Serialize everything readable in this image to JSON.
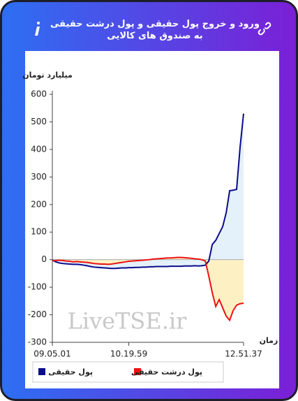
{
  "header": {
    "title": "ورود و خروج پول حقیقی و پول درشت حقیقی به صندوق های کالایی"
  },
  "chart_data": {
    "type": "line",
    "y_label": "میلیارد تومان",
    "x_label": "زمان",
    "watermark": "LiveTSE.ir",
    "categories": [
      "09.05.01",
      null,
      null,
      null,
      null,
      null,
      null,
      null,
      null,
      null,
      null,
      null,
      null,
      null,
      null,
      null,
      null,
      null,
      null,
      null,
      null,
      null,
      "10.19.59",
      null,
      null,
      null,
      null,
      null,
      null,
      null,
      null,
      null,
      null,
      null,
      null,
      null,
      null,
      null,
      null,
      null,
      null,
      null,
      null,
      null,
      null,
      null,
      null,
      null,
      null,
      null,
      null,
      null,
      null,
      null,
      null,
      "12.51.37"
    ],
    "series": [
      {
        "name": "پول حقیقی",
        "color": "#0b0b8c",
        "fill": "#e4f1fa",
        "values": [
          -2,
          -8,
          -12,
          -14,
          -15,
          -16,
          -17,
          -17,
          -18,
          -20,
          -22,
          -25,
          -27,
          -28,
          -29,
          -30,
          -31,
          -32,
          -32,
          -31,
          -30,
          -30,
          -29,
          -29,
          -28,
          -28,
          -27,
          -27,
          -26,
          -26,
          -25,
          -25,
          -25,
          -25,
          -24,
          -24,
          -24,
          -24,
          -23,
          -23,
          -23,
          -22,
          -23,
          -22,
          -20,
          -5,
          55,
          70,
          95,
          120,
          170,
          250,
          252,
          255,
          408,
          530
        ]
      },
      {
        "name": "پول درشت حقیقی",
        "color": "#ee1111",
        "fill": "#fdf1c4",
        "values": [
          -5,
          -3,
          -2,
          -3,
          -5,
          -6,
          -8,
          -7,
          -8,
          -9,
          -10,
          -12,
          -14,
          -15,
          -16,
          -16,
          -17,
          -16,
          -14,
          -12,
          -10,
          -8,
          -6,
          -5,
          -4,
          -3,
          -2,
          -1,
          0,
          2,
          3,
          4,
          5,
          6,
          6,
          7,
          8,
          8,
          7,
          6,
          5,
          3,
          2,
          0,
          -5,
          -60,
          -120,
          -170,
          -145,
          -175,
          -205,
          -220,
          -185,
          -165,
          -160,
          -158
        ]
      }
    ],
    "ylim": [
      -300,
      600
    ],
    "yticks": [
      -300,
      -200,
      -100,
      0,
      100,
      200,
      300,
      400,
      500,
      600
    ],
    "zero_line": true
  }
}
